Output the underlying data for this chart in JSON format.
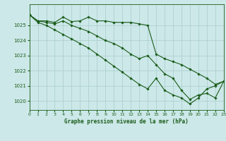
{
  "title": "Graphe pression niveau de la mer (hPa)",
  "background_color": "#cce8e8",
  "grid_color": "#aacccc",
  "line_color": "#1a5c1a",
  "xlim": [
    0,
    23
  ],
  "ylim": [
    1019.4,
    1026.4
  ],
  "yticks": [
    1020,
    1021,
    1022,
    1023,
    1024,
    1025
  ],
  "xticks": [
    0,
    1,
    2,
    3,
    4,
    5,
    6,
    7,
    8,
    9,
    10,
    11,
    12,
    13,
    14,
    15,
    16,
    17,
    18,
    19,
    20,
    21,
    22,
    23
  ],
  "series": [
    {
      "x": [
        0,
        1,
        2,
        3,
        4,
        5,
        6,
        7,
        8,
        9,
        10,
        11,
        12,
        13,
        14,
        15,
        16,
        17,
        18,
        19,
        20,
        21,
        22,
        23
      ],
      "y": [
        1025.7,
        1025.3,
        1025.3,
        1025.2,
        1025.55,
        1025.25,
        1025.3,
        1025.55,
        1025.3,
        1025.3,
        1025.2,
        1025.2,
        1025.2,
        1025.1,
        1025.0,
        1023.1,
        1022.8,
        1022.6,
        1022.4,
        1022.1,
        1021.8,
        1021.5,
        1021.1,
        1021.3
      ]
    },
    {
      "x": [
        0,
        1,
        2,
        3,
        4,
        5,
        6,
        7,
        8,
        9,
        10,
        11,
        12,
        13,
        14,
        15,
        16,
        17,
        18,
        19,
        20,
        21,
        22,
        23
      ],
      "y": [
        1025.7,
        1025.3,
        1025.2,
        1025.1,
        1025.3,
        1025.0,
        1024.8,
        1024.6,
        1024.3,
        1024.0,
        1023.8,
        1023.5,
        1023.1,
        1022.8,
        1023.0,
        1022.4,
        1021.8,
        1021.5,
        1020.7,
        1020.1,
        1020.4,
        1020.5,
        1020.2,
        1021.3
      ]
    },
    {
      "x": [
        0,
        1,
        2,
        3,
        4,
        5,
        6,
        7,
        8,
        9,
        10,
        11,
        12,
        13,
        14,
        15,
        16,
        17,
        18,
        19,
        20,
        21,
        22,
        23
      ],
      "y": [
        1025.7,
        1025.2,
        1025.0,
        1024.7,
        1024.4,
        1024.1,
        1023.8,
        1023.5,
        1023.1,
        1022.7,
        1022.3,
        1021.9,
        1021.5,
        1021.1,
        1020.8,
        1021.5,
        1020.7,
        1020.4,
        1020.2,
        1019.8,
        1020.2,
        1020.8,
        1021.0,
        1021.3
      ]
    }
  ]
}
